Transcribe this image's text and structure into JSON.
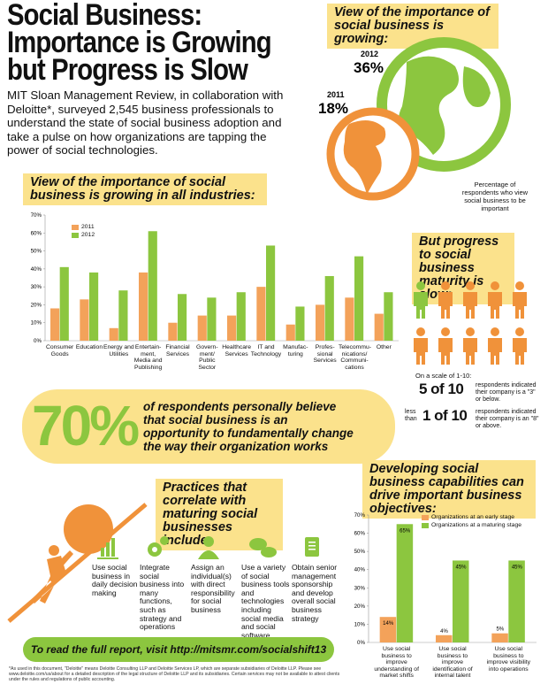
{
  "header": {
    "title_lines": [
      "Social Business:",
      "Importance is Growing",
      "but Progress is Slow"
    ],
    "intro": "MIT Sloan Management Review, in collaboration with Deloitte*, surveyed 2,545 business professionals to understand the state of social business adoption and take a pulse on how organizations are tapping the power of social technologies."
  },
  "globe": {
    "heading": "View of the importance of social business is growing:",
    "year_2012": "2012",
    "pct_2012": "36%",
    "year_2011": "2011",
    "pct_2011": "18%",
    "note": "Percentage of respondents who view social business to be important"
  },
  "industry_chart": {
    "type": "bar",
    "title": "View of the importance of social business is growing in all industries:",
    "categories": [
      "Consumer Goods",
      "Education",
      "Energy and Utilities",
      "Entertain-ment, Media and Publishing",
      "Financial Services",
      "Govern-ment/ Public Sector",
      "Healthcare Services",
      "IT and Technology",
      "Manufac-turing",
      "Profes-sional Services",
      "Telecommu-nications/ Communi-cations",
      "Other"
    ],
    "series": [
      {
        "name": "2011",
        "color": "#f3a25a",
        "values": [
          18,
          23,
          7,
          38,
          10,
          14,
          14,
          30,
          9,
          20,
          24,
          15
        ]
      },
      {
        "name": "2012",
        "color": "#8cc63f",
        "values": [
          41,
          38,
          28,
          61,
          26,
          24,
          27,
          53,
          19,
          36,
          47,
          27
        ]
      }
    ],
    "ylim": [
      0,
      70
    ],
    "yticks": [
      {
        "value": 0,
        "label": "0%"
      },
      {
        "value": 10,
        "label": "10%"
      },
      {
        "value": 20,
        "label": "20%"
      },
      {
        "value": 30,
        "label": "30%"
      },
      {
        "value": 40,
        "label": "40%"
      },
      {
        "value": 50,
        "label": "50%"
      },
      {
        "value": 60,
        "label": "60%"
      },
      {
        "value": 70,
        "label": "70%"
      }
    ],
    "legend": "upper left"
  },
  "maturity": {
    "heading": "But progress to social business maturity is slow:",
    "scale": "On a scale of 1-10:",
    "stat1": "5 of 10",
    "stat1_text": "respondents indicated their company is a \"3\" or below.",
    "less_than": "less than",
    "stat2": "1 of 10",
    "stat2_text": "respondents indicated their company is an \"8\" or above."
  },
  "belief": {
    "pct": "70%",
    "text": "of respondents personally believe that social business is an opportunity to fundamentally change the way their organization works"
  },
  "practices": {
    "heading": "Practices that correlate with maturing social businesses include:",
    "items": [
      "Use social business in daily decision making",
      "Integrate social business into many functions, such as strategy and operations",
      "Assign an individual(s) with direct responsibility for social business",
      "Use a variety of social business tools and technologies including social media and social software",
      "Obtain senior management sponsorship and develop overall social business strategy"
    ]
  },
  "cta": "To read the full report, visit http://mitsmr.com/socialshift13",
  "footnote": "*As used in this document, \"Deloitte\" means Deloitte Consulting LLP and Deloitte Services LP, which are separate subsidiaries of Deloitte LLP. Please see www.deloitte.com/us/about for a detailed description of the legal structure of Deloitte LLP and its subsidiaries. Certain services may not be available to attest clients under the rules and regulations of public accounting.",
  "objectives_chart": {
    "type": "bar",
    "title": "Developing social business capabilities can drive important business objectives:",
    "categories": [
      "Use social business to improve understanding of market shifts",
      "Use social business to improve identification of internal talent",
      "Use social business to improve visibility into operations"
    ],
    "series": [
      {
        "name": "Organizations at an early stage",
        "color": "#f3a25a",
        "values": [
          14,
          4,
          5
        ],
        "value_labels": [
          "14%",
          "4%",
          "5%"
        ]
      },
      {
        "name": "Organizations at a maturing stage",
        "color": "#8cc63f",
        "values": [
          65,
          45,
          45
        ],
        "value_labels": [
          "65%",
          "45%",
          "45%"
        ]
      }
    ],
    "ylim": [
      0,
      70
    ],
    "yticks": [
      {
        "value": 0,
        "label": "0%"
      },
      {
        "value": 10,
        "label": "10%"
      },
      {
        "value": 20,
        "label": "20%"
      },
      {
        "value": 30,
        "label": "30%"
      },
      {
        "value": 40,
        "label": "40%"
      },
      {
        "value": 50,
        "label": "50%"
      },
      {
        "value": 60,
        "label": "60%"
      },
      {
        "value": 70,
        "label": "70%"
      }
    ],
    "legend": "upper center"
  }
}
